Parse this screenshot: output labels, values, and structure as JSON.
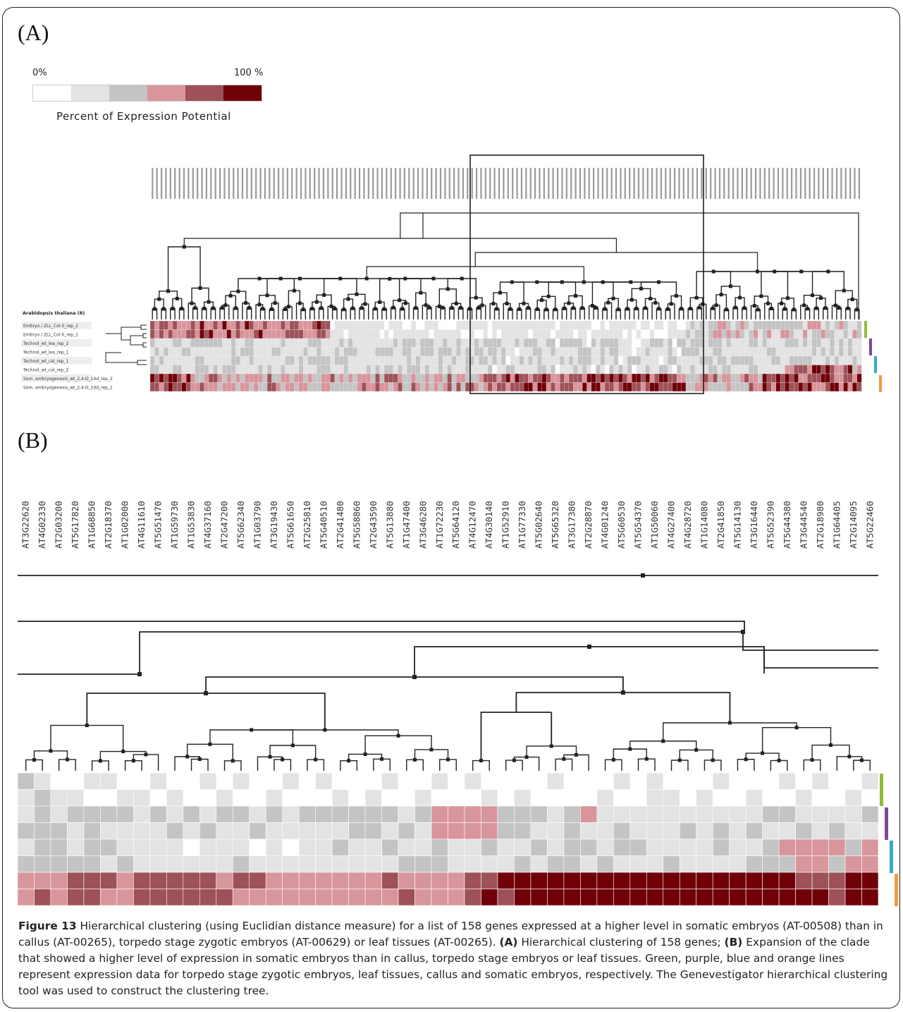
{
  "panel_a": {
    "label": "(A)",
    "legend": {
      "min_label": "0%",
      "max_label": "100 %",
      "title": "Percent of Expression Potential",
      "colors": [
        "#ffffff",
        "#e3e3e3",
        "#c4c4c4",
        "#d9959c",
        "#9e5158",
        "#700008"
      ]
    },
    "organism_label": "Arabidopsis thaliana (8)",
    "samples": [
      "Embryo / ZLL_Col-0_rep_2",
      "Embryo / ZLL_Col-0_rep_1",
      "Technol_wt_lea_rep_2",
      "Technol_wt_lea_rep_1",
      "Technol_wt_cal_rep_1",
      "Technol_wt_cal_rep_2",
      "Som. embryogenesis_wt_2,4-D_10d_rep_2",
      "Som. embryogenesis_wt_2,4-D_10d_rep_1"
    ],
    "gene_count": 158
  },
  "panel_b": {
    "label": "(B)",
    "genes": [
      "AT3G22620",
      "AT4G02330",
      "AT2G03200",
      "AT5G17820",
      "AT1G68850",
      "AT2G18370",
      "AT1G02000",
      "AT4G11610",
      "AT5G51470",
      "AT1G59730",
      "AT1G53830",
      "AT4G37160",
      "AT2G47200",
      "AT5G62340",
      "AT1G03790",
      "AT3G19430",
      "AT5G61650",
      "AT2G25810",
      "AT5G40510",
      "AT2G41480",
      "AT5G58860",
      "AT2G43590",
      "AT5G13880",
      "AT1G47400",
      "AT3G46280",
      "AT1G72230",
      "AT5G64120",
      "AT4G12470",
      "AT4G30140",
      "AT1G52910",
      "AT1G77330",
      "AT5G02640",
      "AT5G65320",
      "AT3G17380",
      "AT2G28870",
      "AT4G01240",
      "AT5G60530",
      "AT5G54370",
      "AT1G50060",
      "AT4G27400",
      "AT4G28720",
      "AT1G14080",
      "AT2G41850",
      "AT5G14130",
      "AT3G16440",
      "AT5G52390",
      "AT5G44380",
      "AT3G44540",
      "AT2G18980",
      "AT1G64405",
      "AT2G14095",
      "AT5G22460"
    ],
    "expression": [
      [
        2,
        1,
        0,
        0,
        1,
        1,
        0,
        0,
        1,
        0,
        0,
        1,
        0,
        1,
        0,
        0,
        1,
        0,
        1,
        0,
        0,
        0,
        1,
        0,
        0,
        1,
        0,
        1,
        0,
        0,
        0,
        0,
        1,
        0,
        0,
        0,
        1,
        0,
        1,
        0,
        0,
        0,
        1,
        0,
        0,
        0,
        1,
        0,
        1,
        0,
        0,
        1
      ],
      [
        1,
        2,
        1,
        1,
        0,
        0,
        1,
        1,
        0,
        1,
        0,
        0,
        1,
        0,
        0,
        1,
        0,
        0,
        0,
        1,
        0,
        1,
        0,
        0,
        1,
        0,
        0,
        0,
        1,
        0,
        1,
        0,
        0,
        0,
        0,
        1,
        0,
        0,
        1,
        1,
        0,
        1,
        0,
        0,
        1,
        0,
        0,
        1,
        0,
        0,
        1,
        0
      ],
      [
        1,
        2,
        1,
        2,
        2,
        2,
        2,
        1,
        2,
        1,
        2,
        1,
        2,
        2,
        1,
        2,
        1,
        2,
        2,
        2,
        2,
        2,
        2,
        1,
        2,
        3,
        3,
        3,
        3,
        2,
        2,
        2,
        1,
        2,
        3,
        1,
        1,
        1,
        1,
        1,
        1,
        1,
        1,
        1,
        1,
        2,
        2,
        1,
        1,
        1,
        1,
        2
      ],
      [
        2,
        2,
        2,
        1,
        2,
        1,
        1,
        1,
        1,
        2,
        1,
        2,
        1,
        1,
        2,
        1,
        1,
        1,
        1,
        1,
        2,
        2,
        1,
        2,
        1,
        3,
        3,
        3,
        3,
        2,
        2,
        1,
        1,
        2,
        1,
        1,
        2,
        1,
        1,
        1,
        2,
        1,
        2,
        1,
        2,
        1,
        1,
        2,
        1,
        2,
        1,
        1
      ],
      [
        1,
        2,
        2,
        1,
        2,
        2,
        1,
        1,
        1,
        1,
        0,
        1,
        1,
        1,
        0,
        1,
        0,
        1,
        1,
        2,
        1,
        1,
        2,
        1,
        1,
        2,
        1,
        1,
        2,
        1,
        1,
        2,
        1,
        2,
        2,
        1,
        2,
        2,
        1,
        1,
        1,
        1,
        2,
        1,
        1,
        2,
        3,
        3,
        3,
        3,
        2,
        3
      ],
      [
        2,
        2,
        2,
        2,
        2,
        1,
        2,
        1,
        1,
        1,
        1,
        1,
        1,
        2,
        1,
        1,
        1,
        1,
        1,
        1,
        1,
        1,
        1,
        2,
        2,
        2,
        1,
        1,
        1,
        1,
        2,
        1,
        2,
        2,
        1,
        2,
        1,
        1,
        1,
        2,
        1,
        1,
        1,
        1,
        2,
        2,
        2,
        3,
        3,
        2,
        3,
        3
      ],
      [
        3,
        3,
        3,
        4,
        4,
        4,
        3,
        4,
        4,
        4,
        4,
        4,
        3,
        4,
        4,
        3,
        3,
        3,
        3,
        3,
        3,
        3,
        4,
        3,
        3,
        3,
        3,
        4,
        4,
        5,
        5,
        5,
        5,
        5,
        5,
        5,
        5,
        5,
        5,
        5,
        5,
        5,
        5,
        5,
        5,
        5,
        5,
        4,
        4,
        4,
        5,
        5
      ],
      [
        3,
        4,
        3,
        4,
        4,
        3,
        3,
        4,
        4,
        4,
        4,
        4,
        4,
        3,
        3,
        3,
        3,
        3,
        3,
        3,
        3,
        3,
        3,
        4,
        3,
        3,
        3,
        4,
        5,
        4,
        5,
        5,
        5,
        5,
        5,
        5,
        5,
        5,
        5,
        5,
        5,
        5,
        5,
        5,
        5,
        5,
        5,
        5,
        5,
        4,
        5,
        5
      ]
    ]
  },
  "caption": {
    "figure_label": "Figure 13",
    "intro": " Hierarchical clustering (using Euclidian distance measure) for a list of 158 genes expressed at a higher level in somatic embryos (AT-00508) than in callus (AT-00265), torpedo stage zygotic embryos (AT-00629) or leaf tissues (AT-00265). ",
    "a_label": "(A)",
    "a_text": " Hierarchical clustering of 158 genes; ",
    "b_label": "(B)",
    "b_text": " Expansion of the clade that showed a higher level of expression in somatic embryos than in callus, torpedo stage embryos or leaf tissues. Green, purple, blue and orange lines represent expression data for torpedo stage zygotic embryos, leaf tissues, callus and somatic embryos, respectively. The Genevestigator hierarchical clustering tool was used to construct the clustering tree."
  },
  "group_colors": [
    "#8fbd3a",
    "#7b4aa0",
    "#38a9c8",
    "#f39a3c"
  ]
}
